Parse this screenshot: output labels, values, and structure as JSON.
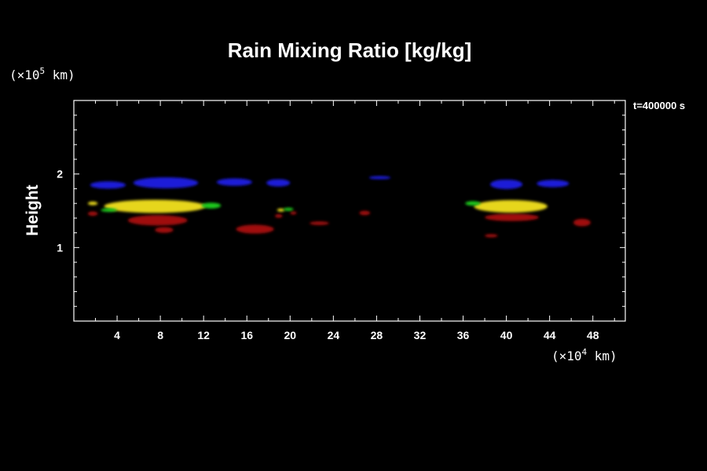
{
  "chart_data": {
    "type": "heatmap",
    "title": "Rain Mixing Ratio [kg/kg]",
    "ylabel": "Height",
    "xlabel": "",
    "time_label": "t=400000 s",
    "x_unit": {
      "prefix": "(×10",
      "exponent": "4",
      "suffix": " km)"
    },
    "y_unit": {
      "prefix": "(×10",
      "exponent": "5",
      "suffix": " km)"
    },
    "xlim": [
      0,
      51
    ],
    "ylim": [
      0,
      3
    ],
    "x_ticks": [
      4,
      8,
      12,
      16,
      20,
      24,
      28,
      32,
      36,
      40,
      44,
      48
    ],
    "x_tick_labels": [
      "4",
      "8",
      "12",
      "16",
      "20",
      "24",
      "28",
      "32",
      "36",
      "40",
      "44",
      "48"
    ],
    "y_ticks": [
      1,
      2
    ],
    "y_tick_labels": [
      "1",
      "2"
    ],
    "grid": false,
    "colors": {
      "blue": "#1a1ad8",
      "yellow": "#e6d61a",
      "green": "#1ec81e",
      "red": "#a01010"
    },
    "blobs": [
      {
        "layer": "blue",
        "x0": 1.5,
        "x1": 4.8,
        "y": 1.85,
        "h": 0.1
      },
      {
        "layer": "blue",
        "x0": 5.5,
        "x1": 11.5,
        "y": 1.88,
        "h": 0.15
      },
      {
        "layer": "blue",
        "x0": 13.2,
        "x1": 16.5,
        "y": 1.89,
        "h": 0.1
      },
      {
        "layer": "blue",
        "x0": 17.8,
        "x1": 20.0,
        "y": 1.88,
        "h": 0.1
      },
      {
        "layer": "blue",
        "x0": 27.3,
        "x1": 29.3,
        "y": 1.95,
        "h": 0.04
      },
      {
        "layer": "blue",
        "x0": 38.5,
        "x1": 41.5,
        "y": 1.86,
        "h": 0.13
      },
      {
        "layer": "blue",
        "x0": 42.8,
        "x1": 45.8,
        "y": 1.87,
        "h": 0.1
      },
      {
        "layer": "yellow",
        "x0": 2.8,
        "x1": 12.2,
        "y": 1.56,
        "h": 0.18
      },
      {
        "layer": "yellow",
        "x0": 37.0,
        "x1": 43.8,
        "y": 1.56,
        "h": 0.17
      },
      {
        "layer": "yellow",
        "x0": 1.3,
        "x1": 2.2,
        "y": 1.6,
        "h": 0.05
      },
      {
        "layer": "yellow",
        "x0": 18.8,
        "x1": 19.5,
        "y": 1.51,
        "h": 0.04
      },
      {
        "layer": "green",
        "x0": 11.8,
        "x1": 13.6,
        "y": 1.57,
        "h": 0.08
      },
      {
        "layer": "green",
        "x0": 36.2,
        "x1": 37.6,
        "y": 1.6,
        "h": 0.06
      },
      {
        "layer": "green",
        "x0": 19.4,
        "x1": 20.3,
        "y": 1.52,
        "h": 0.04
      },
      {
        "layer": "green",
        "x0": 2.5,
        "x1": 4.0,
        "y": 1.51,
        "h": 0.05
      },
      {
        "layer": "red",
        "x0": 5.0,
        "x1": 10.5,
        "y": 1.37,
        "h": 0.14
      },
      {
        "layer": "red",
        "x0": 7.5,
        "x1": 9.2,
        "y": 1.24,
        "h": 0.08
      },
      {
        "layer": "red",
        "x0": 1.3,
        "x1": 2.2,
        "y": 1.46,
        "h": 0.06
      },
      {
        "layer": "red",
        "x0": 15.0,
        "x1": 18.5,
        "y": 1.25,
        "h": 0.12
      },
      {
        "layer": "red",
        "x0": 18.6,
        "x1": 19.3,
        "y": 1.43,
        "h": 0.05
      },
      {
        "layer": "red",
        "x0": 20.0,
        "x1": 20.6,
        "y": 1.47,
        "h": 0.04
      },
      {
        "layer": "red",
        "x0": 21.8,
        "x1": 23.6,
        "y": 1.33,
        "h": 0.05
      },
      {
        "layer": "red",
        "x0": 26.4,
        "x1": 27.4,
        "y": 1.47,
        "h": 0.06
      },
      {
        "layer": "red",
        "x0": 38.0,
        "x1": 43.0,
        "y": 1.41,
        "h": 0.1
      },
      {
        "layer": "red",
        "x0": 46.2,
        "x1": 47.8,
        "y": 1.34,
        "h": 0.1
      },
      {
        "layer": "red",
        "x0": 38.0,
        "x1": 39.2,
        "y": 1.16,
        "h": 0.04
      }
    ]
  }
}
